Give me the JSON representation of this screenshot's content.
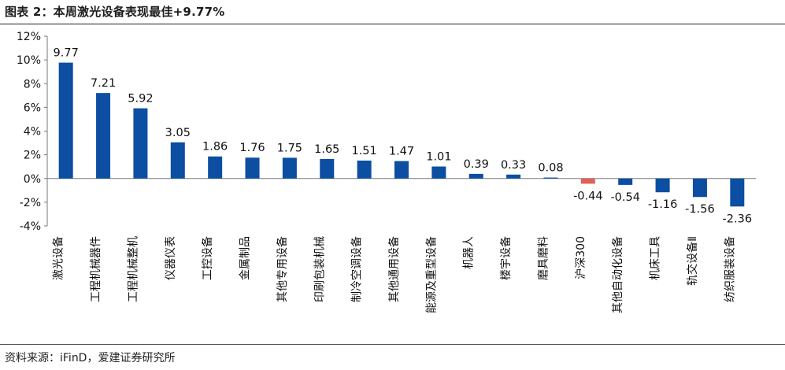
{
  "title": "图表 2：本周激光设备表现最佳+9.77%",
  "source": "资料来源：iFinD，爱建证券研究所",
  "colors": {
    "positive": "#0B4EA2",
    "negative": "#E0605A",
    "axis": "#7a7a7a"
  },
  "chart_data": {
    "type": "bar",
    "categories": [
      "激光设备",
      "工程机械器件",
      "工程机械整机",
      "仪器仪表",
      "工控设备",
      "金属制品",
      "其他专用设备",
      "印刷包装机械",
      "制冷空调设备",
      "其他通用设备",
      "能源及重型设备",
      "机器人",
      "楼宇设备",
      "磨具磨料",
      "沪深300",
      "其他自动化设备",
      "机床工具",
      "轨交设备Ⅱ",
      "纺织服装设备"
    ],
    "values": [
      9.77,
      7.21,
      5.92,
      3.05,
      1.86,
      1.76,
      1.75,
      1.65,
      1.51,
      1.47,
      1.01,
      0.39,
      0.33,
      0.08,
      -0.44,
      -0.54,
      -1.16,
      -1.56,
      -2.36
    ],
    "data_labels": [
      "9.77",
      "7.21",
      "5.92",
      "3.05",
      "1.86",
      "1.76",
      "1.75",
      "1.65",
      "1.51",
      "1.47",
      "1.01",
      "0.39",
      "0.33",
      "0.08",
      "-0.44",
      "-0.54",
      "-1.16",
      "-1.56",
      "-2.36"
    ],
    "highlight_category": "沪深300",
    "ylim": [
      -4,
      12
    ],
    "yticks": [
      -4,
      -2,
      0,
      2,
      4,
      6,
      8,
      10,
      12
    ],
    "ytick_labels": [
      "-4%",
      "-2%",
      "0%",
      "2%",
      "4%",
      "6%",
      "8%",
      "10%",
      "12%"
    ],
    "grid": false,
    "legend": "none"
  }
}
